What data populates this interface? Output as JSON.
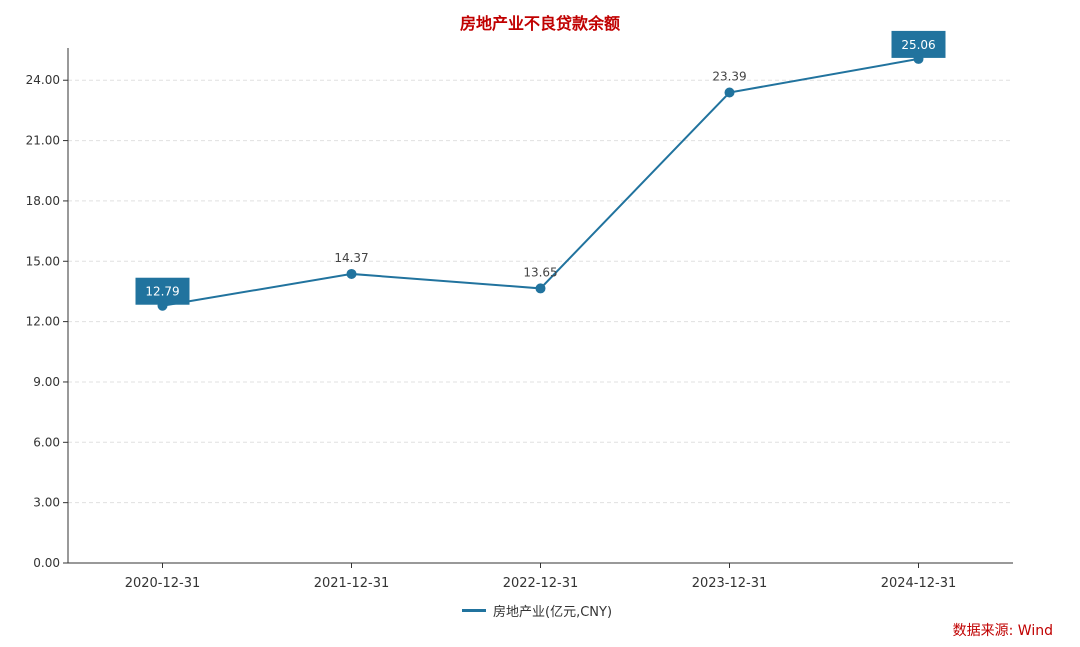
{
  "chart_data": {
    "type": "line",
    "title": "房地产业不良贷款余额",
    "categories": [
      "2020-12-31",
      "2021-12-31",
      "2022-12-31",
      "2023-12-31",
      "2024-12-31"
    ],
    "series": [
      {
        "name": "房地产业(亿元,CNY)",
        "values": [
          12.79,
          14.37,
          13.65,
          23.39,
          25.06
        ],
        "labels": [
          "12.79",
          "14.37",
          "13.65",
          "23.39",
          "25.06"
        ],
        "highlighted": [
          true,
          false,
          false,
          false,
          true
        ]
      }
    ],
    "yticks": [
      "0.00",
      "3.00",
      "6.00",
      "9.00",
      "12.00",
      "15.00",
      "18.00",
      "21.00",
      "24.00"
    ],
    "ylim": [
      0,
      26
    ],
    "grid": true,
    "legend_position": "bottom-center",
    "colors": {
      "line": "#21739e",
      "title": "#c00000",
      "source": "#c00000",
      "grid": "#e0e0e0",
      "axis": "#333333"
    }
  },
  "source_note": "数据来源: Wind"
}
